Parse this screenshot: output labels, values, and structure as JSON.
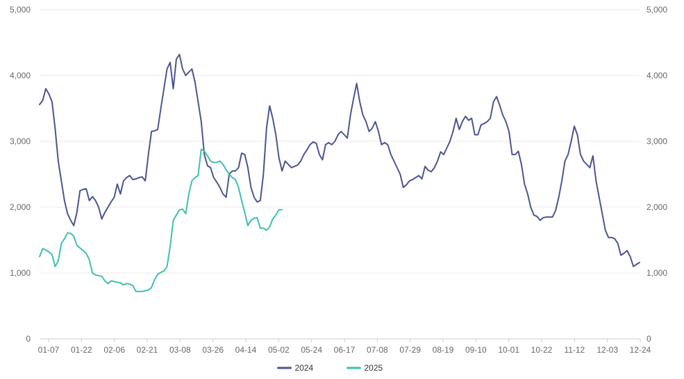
{
  "chart_data": {
    "type": "line",
    "title": "",
    "xlabel": "",
    "ylabel": "",
    "ylim": [
      0,
      5000
    ],
    "y_ticks": [
      "0",
      "1,000",
      "2,000",
      "3,000",
      "4,000",
      "5,000"
    ],
    "y_tick_values": [
      0,
      1000,
      2000,
      3000,
      4000,
      5000
    ],
    "y_axis_right": true,
    "x_tick_labels": [
      "01-07",
      "01-22",
      "02-06",
      "02-21",
      "03-08",
      "03-26",
      "04-14",
      "05-02",
      "05-24",
      "06-17",
      "07-08",
      "07-29",
      "08-19",
      "09-10",
      "10-01",
      "10-22",
      "11-12",
      "12-03",
      "12-24"
    ],
    "grid": "horizontal",
    "legend_position": "bottom-center",
    "series": [
      {
        "name": "2024",
        "color": "#4a5490",
        "points": [
          [
            1,
            3560
          ],
          [
            2,
            3620
          ],
          [
            3,
            3800
          ],
          [
            4,
            3720
          ],
          [
            5,
            3600
          ],
          [
            6,
            3200
          ],
          [
            7,
            2700
          ],
          [
            8,
            2400
          ],
          [
            9,
            2100
          ],
          [
            10,
            1900
          ],
          [
            11,
            1800
          ],
          [
            12,
            1720
          ],
          [
            13,
            1920
          ],
          [
            14,
            2250
          ],
          [
            15,
            2270
          ],
          [
            16,
            2280
          ],
          [
            17,
            2100
          ],
          [
            18,
            2160
          ],
          [
            19,
            2100
          ],
          [
            20,
            2000
          ],
          [
            21,
            1820
          ],
          [
            22,
            1920
          ],
          [
            23,
            2000
          ],
          [
            24,
            2080
          ],
          [
            25,
            2150
          ],
          [
            26,
            2350
          ],
          [
            27,
            2200
          ],
          [
            28,
            2400
          ],
          [
            29,
            2450
          ],
          [
            30,
            2480
          ],
          [
            31,
            2420
          ],
          [
            32,
            2430
          ],
          [
            33,
            2450
          ],
          [
            34,
            2460
          ],
          [
            35,
            2400
          ],
          [
            36,
            2800
          ],
          [
            37,
            3150
          ],
          [
            38,
            3160
          ],
          [
            39,
            3180
          ],
          [
            40,
            3500
          ],
          [
            41,
            3800
          ],
          [
            42,
            4100
          ],
          [
            43,
            4200
          ],
          [
            44,
            3800
          ],
          [
            45,
            4250
          ],
          [
            46,
            4320
          ],
          [
            47,
            4100
          ],
          [
            48,
            4000
          ],
          [
            49,
            4050
          ],
          [
            50,
            4100
          ],
          [
            51,
            3900
          ],
          [
            52,
            3600
          ],
          [
            53,
            3300
          ],
          [
            54,
            2800
          ],
          [
            55,
            2630
          ],
          [
            56,
            2600
          ],
          [
            57,
            2450
          ],
          [
            58,
            2380
          ],
          [
            59,
            2300
          ],
          [
            60,
            2200
          ],
          [
            61,
            2150
          ],
          [
            62,
            2500
          ],
          [
            63,
            2550
          ],
          [
            64,
            2550
          ],
          [
            65,
            2600
          ],
          [
            66,
            2820
          ],
          [
            67,
            2800
          ],
          [
            68,
            2600
          ],
          [
            69,
            2300
          ],
          [
            70,
            2150
          ],
          [
            71,
            2080
          ],
          [
            72,
            2100
          ],
          [
            73,
            2500
          ],
          [
            74,
            3200
          ],
          [
            75,
            3540
          ],
          [
            76,
            3350
          ],
          [
            77,
            3100
          ],
          [
            78,
            2750
          ],
          [
            79,
            2550
          ],
          [
            80,
            2700
          ],
          [
            81,
            2650
          ],
          [
            82,
            2600
          ],
          [
            83,
            2620
          ],
          [
            84,
            2640
          ],
          [
            85,
            2700
          ],
          [
            86,
            2800
          ],
          [
            87,
            2870
          ],
          [
            88,
            2950
          ],
          [
            89,
            2990
          ],
          [
            90,
            2970
          ],
          [
            91,
            2800
          ],
          [
            92,
            2720
          ],
          [
            93,
            2950
          ],
          [
            94,
            2980
          ],
          [
            95,
            2950
          ],
          [
            96,
            3000
          ],
          [
            97,
            3100
          ],
          [
            98,
            3150
          ],
          [
            99,
            3100
          ],
          [
            100,
            3050
          ],
          [
            101,
            3400
          ],
          [
            102,
            3650
          ],
          [
            103,
            3880
          ],
          [
            104,
            3600
          ],
          [
            105,
            3400
          ],
          [
            106,
            3300
          ],
          [
            107,
            3150
          ],
          [
            108,
            3200
          ],
          [
            109,
            3300
          ],
          [
            110,
            3150
          ],
          [
            111,
            2950
          ],
          [
            112,
            2980
          ],
          [
            113,
            2950
          ],
          [
            114,
            2800
          ],
          [
            115,
            2700
          ],
          [
            116,
            2600
          ],
          [
            117,
            2500
          ],
          [
            118,
            2300
          ],
          [
            119,
            2340
          ],
          [
            120,
            2400
          ],
          [
            121,
            2420
          ],
          [
            122,
            2450
          ],
          [
            123,
            2480
          ],
          [
            124,
            2430
          ],
          [
            125,
            2620
          ],
          [
            126,
            2560
          ],
          [
            127,
            2540
          ],
          [
            128,
            2600
          ],
          [
            129,
            2700
          ],
          [
            130,
            2840
          ],
          [
            131,
            2800
          ],
          [
            132,
            2900
          ],
          [
            133,
            3000
          ],
          [
            134,
            3150
          ],
          [
            135,
            3350
          ],
          [
            136,
            3180
          ],
          [
            137,
            3300
          ],
          [
            138,
            3380
          ],
          [
            139,
            3320
          ],
          [
            140,
            3350
          ],
          [
            141,
            3100
          ],
          [
            142,
            3100
          ],
          [
            143,
            3250
          ],
          [
            144,
            3270
          ],
          [
            145,
            3300
          ],
          [
            146,
            3350
          ],
          [
            147,
            3600
          ],
          [
            148,
            3680
          ],
          [
            149,
            3550
          ],
          [
            150,
            3400
          ],
          [
            151,
            3300
          ],
          [
            152,
            3150
          ],
          [
            153,
            2800
          ],
          [
            154,
            2800
          ],
          [
            155,
            2850
          ],
          [
            156,
            2650
          ],
          [
            157,
            2350
          ],
          [
            158,
            2200
          ],
          [
            159,
            2000
          ],
          [
            160,
            1880
          ],
          [
            161,
            1860
          ],
          [
            162,
            1800
          ],
          [
            163,
            1840
          ],
          [
            164,
            1850
          ],
          [
            165,
            1850
          ],
          [
            166,
            1850
          ],
          [
            167,
            1950
          ],
          [
            168,
            2150
          ],
          [
            169,
            2400
          ],
          [
            170,
            2700
          ],
          [
            171,
            2800
          ],
          [
            172,
            3000
          ],
          [
            173,
            3230
          ],
          [
            174,
            3100
          ],
          [
            175,
            2800
          ],
          [
            176,
            2700
          ],
          [
            177,
            2650
          ],
          [
            178,
            2600
          ],
          [
            179,
            2780
          ],
          [
            180,
            2400
          ],
          [
            181,
            2150
          ],
          [
            182,
            1900
          ],
          [
            183,
            1650
          ],
          [
            184,
            1540
          ],
          [
            185,
            1540
          ],
          [
            186,
            1520
          ],
          [
            187,
            1450
          ],
          [
            188,
            1270
          ],
          [
            189,
            1300
          ],
          [
            190,
            1340
          ],
          [
            191,
            1250
          ],
          [
            192,
            1100
          ],
          [
            193,
            1130
          ],
          [
            194,
            1160
          ]
        ]
      },
      {
        "name": "2025",
        "color": "#3dc0ad",
        "points": [
          [
            1,
            1250
          ],
          [
            2,
            1370
          ],
          [
            3,
            1350
          ],
          [
            4,
            1320
          ],
          [
            5,
            1280
          ],
          [
            6,
            1100
          ],
          [
            7,
            1180
          ],
          [
            8,
            1450
          ],
          [
            9,
            1520
          ],
          [
            10,
            1610
          ],
          [
            11,
            1600
          ],
          [
            12,
            1560
          ],
          [
            13,
            1420
          ],
          [
            14,
            1380
          ],
          [
            15,
            1340
          ],
          [
            16,
            1300
          ],
          [
            17,
            1200
          ],
          [
            18,
            1000
          ],
          [
            19,
            970
          ],
          [
            20,
            960
          ],
          [
            21,
            950
          ],
          [
            22,
            880
          ],
          [
            23,
            840
          ],
          [
            24,
            880
          ],
          [
            25,
            870
          ],
          [
            26,
            860
          ],
          [
            27,
            850
          ],
          [
            28,
            820
          ],
          [
            29,
            840
          ],
          [
            30,
            830
          ],
          [
            31,
            810
          ],
          [
            32,
            720
          ],
          [
            33,
            720
          ],
          [
            34,
            720
          ],
          [
            35,
            730
          ],
          [
            36,
            740
          ],
          [
            37,
            780
          ],
          [
            38,
            900
          ],
          [
            39,
            980
          ],
          [
            40,
            1010
          ],
          [
            41,
            1030
          ],
          [
            42,
            1100
          ],
          [
            43,
            1400
          ],
          [
            44,
            1800
          ],
          [
            45,
            1880
          ],
          [
            46,
            1960
          ],
          [
            47,
            1970
          ],
          [
            48,
            1900
          ],
          [
            49,
            2200
          ],
          [
            50,
            2400
          ],
          [
            51,
            2450
          ],
          [
            52,
            2480
          ],
          [
            53,
            2880
          ],
          [
            54,
            2850
          ],
          [
            55,
            2780
          ],
          [
            56,
            2700
          ],
          [
            57,
            2680
          ],
          [
            58,
            2680
          ],
          [
            59,
            2700
          ],
          [
            60,
            2650
          ],
          [
            61,
            2570
          ],
          [
            62,
            2500
          ],
          [
            63,
            2450
          ],
          [
            64,
            2420
          ],
          [
            65,
            2300
          ],
          [
            66,
            2100
          ],
          [
            67,
            1920
          ],
          [
            68,
            1720
          ],
          [
            69,
            1800
          ],
          [
            70,
            1830
          ],
          [
            71,
            1840
          ],
          [
            72,
            1680
          ],
          [
            73,
            1680
          ],
          [
            74,
            1650
          ],
          [
            75,
            1700
          ],
          [
            76,
            1820
          ],
          [
            77,
            1880
          ],
          [
            78,
            1960
          ],
          [
            79,
            1960
          ]
        ]
      }
    ]
  }
}
